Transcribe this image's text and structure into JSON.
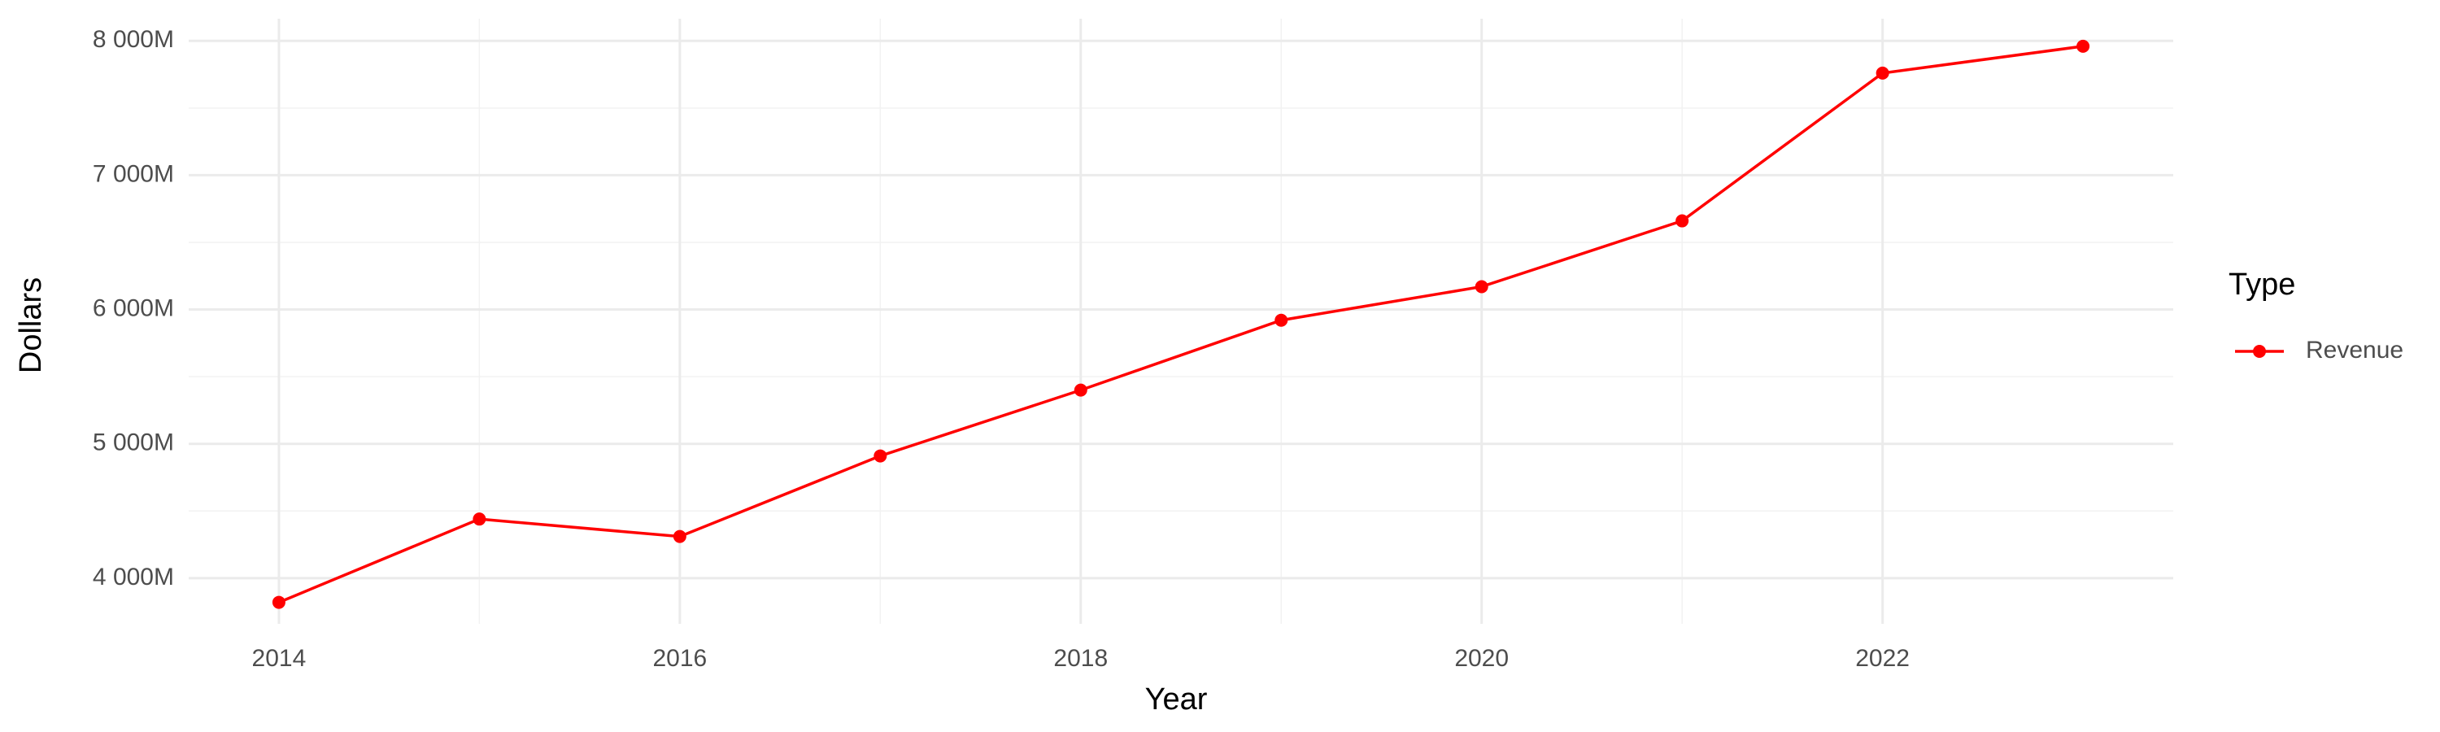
{
  "chart_data": {
    "type": "line",
    "x_label": "Year",
    "y_label": "Dollars",
    "x": [
      2014,
      2015,
      2016,
      2017,
      2018,
      2019,
      2020,
      2021,
      2022,
      2023
    ],
    "series": [
      {
        "name": "Revenue",
        "color": "#ff0000",
        "values": [
          3820,
          4440,
          4310,
          4910,
          5400,
          5920,
          6170,
          6660,
          7760,
          7960
        ]
      }
    ],
    "xlim": [
      2013.55,
      2023.45
    ],
    "ylim": [
      3660,
      8165
    ],
    "xticks": [
      2014,
      2016,
      2018,
      2020,
      2022
    ],
    "yticks": [
      {
        "value": 4000,
        "label": "4 000M"
      },
      {
        "value": 5000,
        "label": "5 000M"
      },
      {
        "value": 6000,
        "label": "6 000M"
      },
      {
        "value": 7000,
        "label": "7 000M"
      },
      {
        "value": 8000,
        "label": "8 000M"
      }
    ],
    "grid": true,
    "legend_title": "Type",
    "legend": "right"
  }
}
